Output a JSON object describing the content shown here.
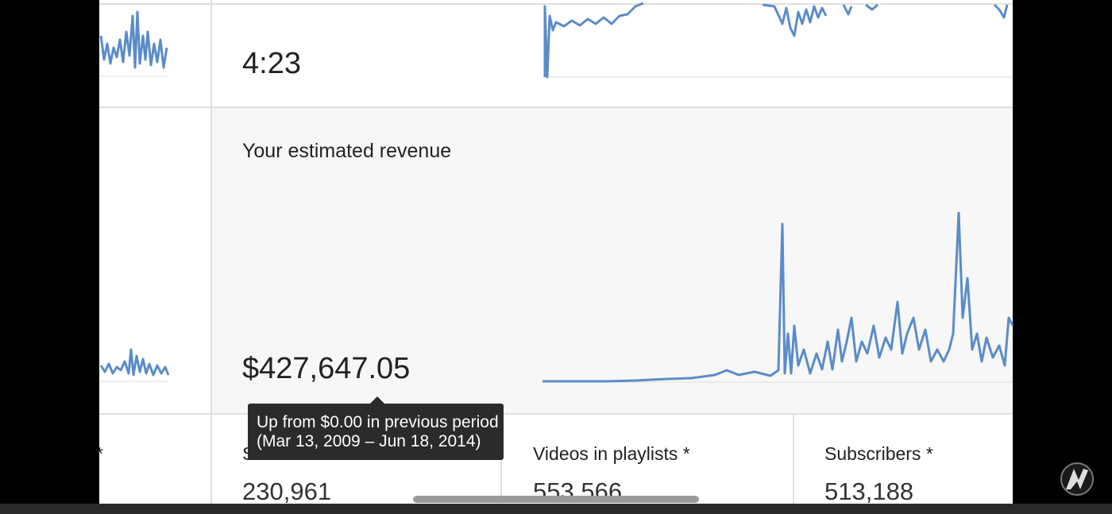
{
  "top_card": {
    "value": "4:23"
  },
  "revenue_card": {
    "title": "Your estimated revenue",
    "value": "$427,647.05"
  },
  "tooltip": {
    "lines": [
      "Up from $0.00 in previous period",
      "(Mar 13, 2009 – Jun 18, 2014)"
    ]
  },
  "left_fragment": "*",
  "stats": [
    {
      "label": "S",
      "value": "230,961"
    },
    {
      "label": "Videos in playlists *",
      "value": "553,566"
    },
    {
      "label": "Subscribers *",
      "value": "513,188"
    }
  ]
}
